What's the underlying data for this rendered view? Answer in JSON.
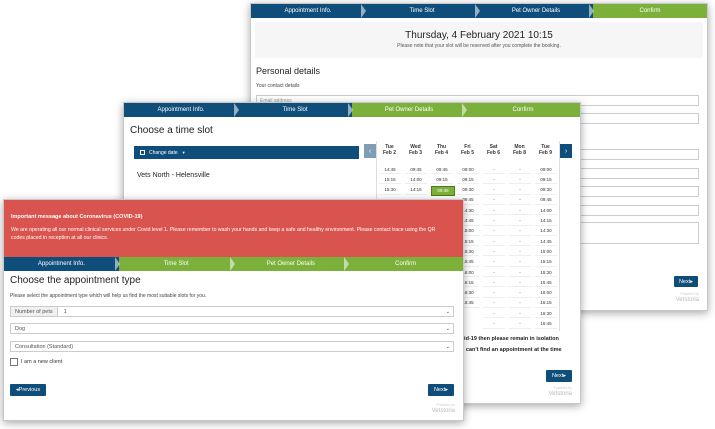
{
  "steps": [
    "Appointment Info.",
    "Time Slot",
    "Pet Owner Details",
    "Confirm"
  ],
  "confirm_window": {
    "date": "Thursday, 4 February 2021 10:15",
    "note": "Please note that your slot will be reserved after you complete the booking.",
    "section_title": "Personal details",
    "contact_label": "Your contact details",
    "email_placeholder": "Email address",
    "next_label": "Next",
    "logo": "Vetstoria",
    "logo_powered": "Powered by"
  },
  "slot_window": {
    "title": "Choose a time slot",
    "change_date": "Change date",
    "clinic": "Vets North - Helensville",
    "days": [
      {
        "d": "Tue",
        "date": "Feb 2"
      },
      {
        "d": "Wed",
        "date": "Feb 3"
      },
      {
        "d": "Thu",
        "date": "Feb 4"
      },
      {
        "d": "Fri",
        "date": "Feb 5"
      },
      {
        "d": "Sat",
        "date": "Feb 6"
      },
      {
        "d": "Mon",
        "date": "Feb 8"
      },
      {
        "d": "Tue",
        "date": "Feb 9"
      }
    ],
    "slots": [
      [
        "14:45",
        "09:45",
        "09:45",
        "09:00",
        "-",
        "-",
        "09:00"
      ],
      [
        "15:15",
        "14:00",
        "09:15",
        "09:15",
        "-",
        "-",
        "09:15"
      ],
      [
        "15:30",
        "14:15",
        "09:45",
        "09:30",
        "-",
        "-",
        "09:30"
      ],
      [
        "",
        "",
        "",
        "09:45",
        "-",
        "-",
        "09:45"
      ],
      [
        "",
        "",
        "",
        "14:30",
        "-",
        "-",
        "14:00"
      ],
      [
        "",
        "",
        "",
        "14:45",
        "-",
        "-",
        "14:15"
      ],
      [
        "",
        "",
        "",
        "15:00",
        "-",
        "-",
        "14:30"
      ],
      [
        "",
        "",
        "",
        "15:15",
        "-",
        "-",
        "14:45"
      ],
      [
        "",
        "",
        "",
        "15:30",
        "-",
        "-",
        "15:00"
      ],
      [
        "",
        "",
        "",
        "15:45",
        "-",
        "-",
        "15:15"
      ],
      [
        "",
        "",
        "",
        "16:00",
        "-",
        "-",
        "15:30"
      ],
      [
        "",
        "",
        "",
        "16:15",
        "-",
        "-",
        "15:45"
      ],
      [
        "",
        "",
        "",
        "16:30",
        "-",
        "-",
        "16:00"
      ],
      [
        "",
        "",
        "",
        "16:45",
        "-",
        "-",
        "16:15"
      ],
      [
        "",
        "",
        "",
        "",
        "-",
        "-",
        "16:30"
      ],
      [
        "",
        "",
        "",
        "",
        "-",
        "-",
        "16:45"
      ]
    ],
    "selected_slot": "09:45",
    "bottom_line1": "vid-19 then please remain in isolation",
    "bottom_line2": "u can't find an appointment at the time",
    "next_label": "Next",
    "logo": "Vetstoria",
    "logo_powered": "Powered by"
  },
  "type_window": {
    "alert_title": "Important message about Coronavirus (COVID-19)",
    "alert_body": "We are operating all our normal clinical services under Covid level 1. Please remember to wash your hands and keep a safe and healthy environment. Please contact trace using the QR codes placed in reception at all our clinics.",
    "title": "Choose the appointment type",
    "instructions": "Please select the appointment type which will help us find the most suitable slots for you.",
    "pets_label": "Number of pets",
    "pets_value": "1",
    "species_value": "Dog",
    "type_value": "Consultation (Standard)",
    "new_client_label": "I am a new client",
    "prev_label": "Previous",
    "next_label": "Next",
    "logo": "Vetstoria",
    "logo_powered": "Powered by"
  },
  "colors": {
    "blue": "#0f4e7a",
    "green": "#7bb03a",
    "alert": "#d9534f"
  }
}
